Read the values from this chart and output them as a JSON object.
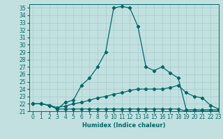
{
  "title": "",
  "xlabel": "Humidex (Indice chaleur)",
  "bg_color": "#c2e0e0",
  "grid_color": "#9fc8c8",
  "line_color": "#006868",
  "xlim": [
    -0.5,
    23
  ],
  "ylim": [
    21,
    35.5
  ],
  "yticks": [
    21,
    22,
    23,
    24,
    25,
    26,
    27,
    28,
    29,
    30,
    31,
    32,
    33,
    34,
    35
  ],
  "xticks": [
    0,
    1,
    2,
    3,
    4,
    5,
    6,
    7,
    8,
    9,
    10,
    11,
    12,
    13,
    14,
    15,
    16,
    17,
    18,
    19,
    20,
    21,
    22,
    23
  ],
  "curve1_x": [
    0,
    1,
    2,
    3,
    4,
    5,
    6,
    7,
    8,
    9,
    10,
    11,
    12,
    13,
    14,
    15,
    16,
    17,
    18,
    19,
    20,
    21,
    22,
    23
  ],
  "curve1_y": [
    22,
    22,
    21.8,
    21.3,
    22.2,
    22.5,
    24.5,
    25.5,
    27,
    29,
    35,
    35.2,
    35,
    32.5,
    27,
    26.5,
    27,
    26.2,
    25.5,
    21.2,
    21.2,
    21.2,
    21.2,
    21.2
  ],
  "curve2_x": [
    0,
    1,
    2,
    3,
    4,
    5,
    6,
    7,
    8,
    9,
    10,
    11,
    12,
    13,
    14,
    15,
    16,
    17,
    18,
    19,
    20,
    21,
    22,
    23
  ],
  "curve2_y": [
    22,
    22,
    21.8,
    21.5,
    21.7,
    22,
    22.2,
    22.5,
    22.8,
    23,
    23.3,
    23.5,
    23.8,
    24,
    24,
    24,
    24,
    24.2,
    24.5,
    23.5,
    23,
    22.8,
    21.8,
    21.3
  ],
  "curve3_x": [
    0,
    1,
    2,
    3,
    4,
    5,
    6,
    7,
    8,
    9,
    10,
    11,
    12,
    13,
    14,
    15,
    16,
    17,
    18,
    19,
    20,
    21,
    22,
    23
  ],
  "curve3_y": [
    22,
    22,
    21.8,
    21.3,
    21.3,
    21.3,
    21.3,
    21.3,
    21.3,
    21.3,
    21.3,
    21.3,
    21.3,
    21.3,
    21.3,
    21.3,
    21.3,
    21.3,
    21.3,
    21.0,
    21.0,
    21.0,
    21.0,
    21.0
  ],
  "tick_fontsize": 5.5,
  "xlabel_fontsize": 6,
  "marker_size": 2.2,
  "linewidth": 0.9
}
